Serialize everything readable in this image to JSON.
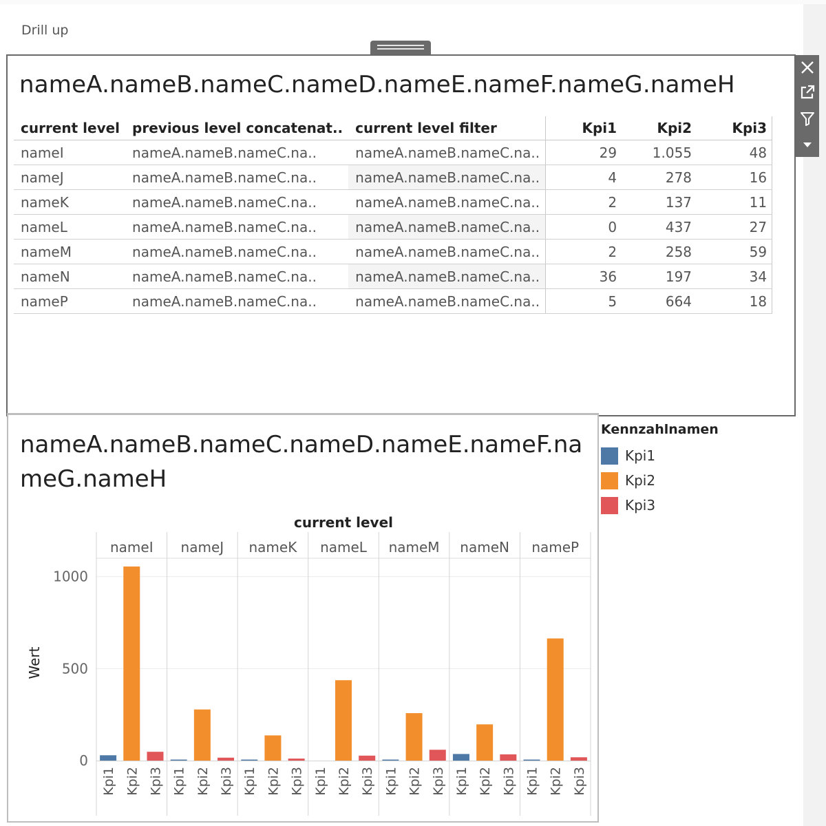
{
  "drill_up_label": "Drill up",
  "table_panel": {
    "title": "nameA.nameB.nameC.nameD.nameE.nameF.nameG.nameH",
    "columns": [
      "current level",
      "previous level concatenat..",
      "current level filter",
      "Kpi1",
      "Kpi2",
      "Kpi3"
    ],
    "rows": [
      {
        "level": "nameI",
        "previous": "nameA.nameB.nameC.na..",
        "filter": "nameA.nameB.nameC.na..",
        "kpi1": "29",
        "kpi2": "1.055",
        "kpi3": "48"
      },
      {
        "level": "nameJ",
        "previous": "nameA.nameB.nameC.na..",
        "filter": "nameA.nameB.nameC.na..",
        "kpi1": "4",
        "kpi2": "278",
        "kpi3": "16"
      },
      {
        "level": "nameK",
        "previous": "nameA.nameB.nameC.na..",
        "filter": "nameA.nameB.nameC.na..",
        "kpi1": "2",
        "kpi2": "137",
        "kpi3": "11"
      },
      {
        "level": "nameL",
        "previous": "nameA.nameB.nameC.na..",
        "filter": "nameA.nameB.nameC.na..",
        "kpi1": "0",
        "kpi2": "437",
        "kpi3": "27"
      },
      {
        "level": "nameM",
        "previous": "nameA.nameB.nameC.na..",
        "filter": "nameA.nameB.nameC.na..",
        "kpi1": "2",
        "kpi2": "258",
        "kpi3": "59"
      },
      {
        "level": "nameN",
        "previous": "nameA.nameB.nameC.na..",
        "filter": "nameA.nameB.nameC.na..",
        "kpi1": "36",
        "kpi2": "197",
        "kpi3": "34"
      },
      {
        "level": "nameP",
        "previous": "nameA.nameB.nameC.na..",
        "filter": "nameA.nameB.nameC.na..",
        "kpi1": "5",
        "kpi2": "664",
        "kpi3": "18"
      }
    ]
  },
  "toolbar": {
    "icons": [
      "close-icon",
      "open-external-icon",
      "filter-icon",
      "dropdown-arrow-icon"
    ],
    "background": "#6a6a6a"
  },
  "legend": {
    "title": "Kennzahlnamen",
    "items": [
      {
        "label": "Kpi1",
        "color": "#4e79a7"
      },
      {
        "label": "Kpi2",
        "color": "#f28e2b"
      },
      {
        "label": "Kpi3",
        "color": "#e15759"
      }
    ]
  },
  "chart_data": {
    "type": "bar",
    "title": "nameA.nameB.nameC.nameD.nameE.nameF.nameG.nameH",
    "column_header": "current level",
    "ylabel": "Wert",
    "xlabel": "",
    "ylim": [
      0,
      1100
    ],
    "yticks": [
      0,
      500,
      1000
    ],
    "grid": true,
    "legend_position": "right",
    "categories": [
      "nameI",
      "nameJ",
      "nameK",
      "nameL",
      "nameM",
      "nameN",
      "nameP"
    ],
    "sub_categories": [
      "Kpi1",
      "Kpi2",
      "Kpi3"
    ],
    "series": [
      {
        "name": "Kpi1",
        "color": "#4e79a7",
        "values": [
          29,
          4,
          2,
          0,
          2,
          36,
          5
        ]
      },
      {
        "name": "Kpi2",
        "color": "#f28e2b",
        "values": [
          1055,
          278,
          137,
          437,
          258,
          197,
          664
        ]
      },
      {
        "name": "Kpi3",
        "color": "#e15759",
        "values": [
          48,
          16,
          11,
          27,
          59,
          34,
          18
        ]
      }
    ]
  }
}
